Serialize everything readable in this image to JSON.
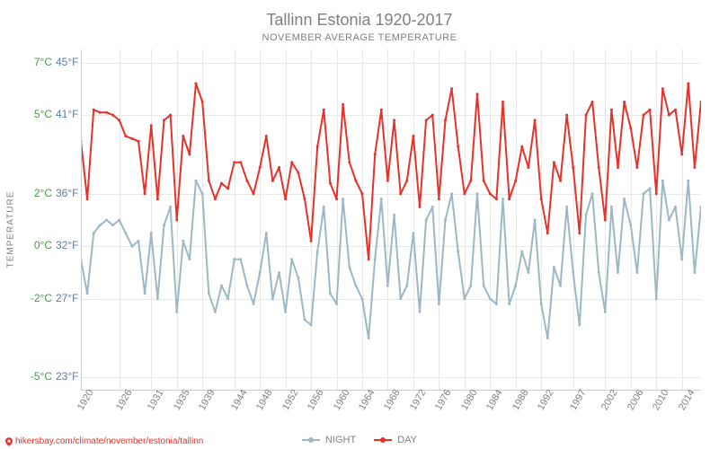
{
  "title": "Tallinn Estonia 1920-2017",
  "subtitle": "NOVEMBER AVERAGE TEMPERATURE",
  "y_axis_label": "TEMPERATURE",
  "footer_url": "hikersbay.com/climate/november/estonia/tallinn",
  "legend": {
    "night_label": "NIGHT",
    "day_label": "DAY"
  },
  "chart": {
    "type": "line",
    "background_color": "#ffffff",
    "grid_color": "#e8e8e8",
    "axis_color": "#cccccc",
    "text_color": "#808080",
    "celsius_label_color": "#4a9b4a",
    "fahrenheit_label_color": "#5b7ca8",
    "title_fontsize": 18,
    "subtitle_fontsize": 11,
    "tick_fontsize": 12,
    "x_years": [
      1920,
      1921,
      1922,
      1923,
      1924,
      1925,
      1926,
      1927,
      1928,
      1929,
      1930,
      1931,
      1932,
      1933,
      1934,
      1935,
      1936,
      1937,
      1938,
      1939,
      1940,
      1941,
      1942,
      1943,
      1944,
      1945,
      1946,
      1947,
      1948,
      1949,
      1950,
      1951,
      1952,
      1953,
      1954,
      1955,
      1956,
      1957,
      1958,
      1959,
      1960,
      1961,
      1962,
      1963,
      1964,
      1965,
      1966,
      1967,
      1968,
      1969,
      1970,
      1971,
      1972,
      1973,
      1974,
      1975,
      1976,
      1977,
      1978,
      1979,
      1980,
      1981,
      1982,
      1983,
      1984,
      1985,
      1986,
      1987,
      1988,
      1989,
      1990,
      1991,
      1992,
      1993,
      1994,
      1995,
      1996,
      1997,
      1998,
      1999,
      2000,
      2001,
      2002,
      2003,
      2004,
      2005,
      2006,
      2007,
      2008,
      2009,
      2010,
      2011,
      2012,
      2013,
      2014,
      2015,
      2016,
      2017
    ],
    "x_tick_labels": [
      1920,
      1926,
      1931,
      1935,
      1939,
      1944,
      1948,
      1952,
      1956,
      1960,
      1964,
      1968,
      1972,
      1976,
      1980,
      1984,
      1988,
      1992,
      1997,
      2002,
      2006,
      2010,
      2014
    ],
    "y_ticks_c": [
      -5,
      -2,
      0,
      2,
      5,
      7
    ],
    "y_ticks_f": [
      23,
      27,
      32,
      36,
      41,
      45
    ],
    "ylim_c": [
      -5.5,
      7.5
    ],
    "series": {
      "day": {
        "color": "#e6322a",
        "line_width": 2,
        "marker": "circle",
        "marker_size": 3,
        "values_c": [
          4.0,
          1.8,
          5.2,
          5.1,
          5.1,
          5.0,
          4.8,
          4.2,
          4.1,
          4.0,
          2.0,
          4.6,
          1.8,
          4.8,
          5.0,
          1.0,
          4.2,
          3.5,
          6.2,
          5.5,
          2.5,
          1.8,
          2.4,
          2.2,
          3.2,
          3.2,
          2.5,
          2.0,
          3.0,
          4.2,
          2.5,
          3.0,
          1.8,
          3.2,
          2.8,
          1.8,
          0.2,
          3.8,
          5.2,
          2.4,
          1.8,
          5.4,
          3.2,
          2.5,
          2.0,
          -0.5,
          3.5,
          5.2,
          2.5,
          4.8,
          2.0,
          2.5,
          4.2,
          1.5,
          4.8,
          5.0,
          1.8,
          4.8,
          6.0,
          3.8,
          2.0,
          2.5,
          5.8,
          2.5,
          2.0,
          1.8,
          5.5,
          1.8,
          2.5,
          3.8,
          3.0,
          4.8,
          1.8,
          0.5,
          3.2,
          2.5,
          5.0,
          3.0,
          0.5,
          5.0,
          5.5,
          3.0,
          1.0,
          5.2,
          3.0,
          5.5,
          4.5,
          3.0,
          5.0,
          5.2,
          2.0,
          6.0,
          5.0,
          5.2,
          3.5,
          6.2,
          3.0,
          5.5
        ]
      },
      "night": {
        "color": "#9db8c4",
        "line_width": 2,
        "marker": "circle",
        "marker_size": 3,
        "values_c": [
          -0.5,
          -1.8,
          0.5,
          0.8,
          1.0,
          0.8,
          1.0,
          0.5,
          0.0,
          0.2,
          -1.8,
          0.5,
          -2.0,
          0.8,
          1.5,
          -2.5,
          0.2,
          -0.5,
          2.5,
          2.0,
          -1.8,
          -2.5,
          -1.5,
          -2.0,
          -0.5,
          -0.5,
          -1.5,
          -2.2,
          -1.0,
          0.5,
          -2.0,
          -1.0,
          -2.5,
          -0.5,
          -1.2,
          -2.8,
          -3.0,
          -0.2,
          1.5,
          -1.8,
          -2.2,
          1.8,
          -0.8,
          -1.5,
          -2.0,
          -3.5,
          -0.5,
          1.8,
          -1.5,
          1.2,
          -2.0,
          -1.5,
          0.5,
          -2.5,
          1.0,
          1.5,
          -2.2,
          1.0,
          2.0,
          -0.2,
          -2.0,
          -1.5,
          2.0,
          -1.5,
          -2.0,
          -2.2,
          1.8,
          -2.2,
          -1.5,
          -0.2,
          -1.0,
          1.0,
          -2.2,
          -3.5,
          -0.8,
          -1.5,
          1.5,
          -1.0,
          -3.0,
          1.2,
          2.0,
          -1.0,
          -2.5,
          1.5,
          -1.0,
          1.8,
          0.8,
          -1.0,
          2.0,
          2.2,
          -2.0,
          2.5,
          1.0,
          1.5,
          -0.5,
          2.5,
          -1.0,
          1.5
        ]
      }
    }
  }
}
